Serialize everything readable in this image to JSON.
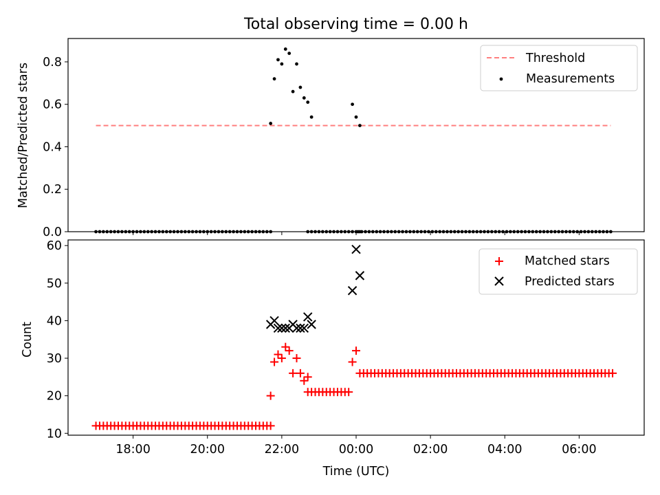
{
  "chart_data": [
    {
      "type": "scatter",
      "title": "Total observing time = 0.00 h",
      "xlabel": "",
      "ylabel": "Matched/Predicted stars",
      "ylim": [
        0,
        0.91
      ],
      "yticks": [
        0.0,
        0.2,
        0.4,
        0.6,
        0.8
      ],
      "ytick_labels": [
        "0.0",
        "0.2",
        "0.4",
        "0.6",
        "0.8"
      ],
      "legend_position": "top-right",
      "threshold": {
        "name": "Threshold",
        "value": 0.5,
        "x_start": -7.0,
        "x_end": 6.85,
        "color": "#ff7f7f"
      },
      "measurements": {
        "name": "Measurements",
        "color": "#000000",
        "zero_segments": [
          [
            -7.0,
            -2.35
          ],
          [
            -1.3,
            0.05
          ],
          [
            0.05,
            6.85
          ]
        ],
        "points": [
          [
            -2.3,
            0.51
          ],
          [
            -2.2,
            0.72
          ],
          [
            -2.1,
            0.81
          ],
          [
            -2.0,
            0.79
          ],
          [
            -1.9,
            0.86
          ],
          [
            -1.8,
            0.84
          ],
          [
            -1.7,
            0.66
          ],
          [
            -1.6,
            0.79
          ],
          [
            -1.5,
            0.68
          ],
          [
            -1.4,
            0.63
          ],
          [
            -1.3,
            0.61
          ],
          [
            -1.2,
            0.54
          ],
          [
            -0.1,
            0.6
          ],
          [
            0.0,
            0.54
          ],
          [
            0.1,
            0.5
          ]
        ]
      }
    },
    {
      "type": "scatter",
      "title": "",
      "xlabel": "Time (UTC)",
      "ylabel": "Count",
      "ylim": [
        9.5,
        61.5
      ],
      "yticks": [
        10,
        20,
        30,
        40,
        50,
        60
      ],
      "ytick_labels": [
        "10",
        "20",
        "30",
        "40",
        "50",
        "60"
      ],
      "xlim": [
        -7.75,
        7.75
      ],
      "xticks": [
        -6,
        -4,
        -2,
        0,
        2,
        4,
        6
      ],
      "xtick_labels": [
        "18:00",
        "20:00",
        "22:00",
        "00:00",
        "02:00",
        "04:00",
        "06:00"
      ],
      "legend_position": "top-right",
      "matched": {
        "name": "Matched stars",
        "color": "#ff0000",
        "constant_segments": [
          {
            "from": -7.0,
            "to": -2.35,
            "value": 12
          },
          {
            "from": -1.3,
            "to": -0.25,
            "value": 21
          },
          {
            "from": 0.1,
            "to": 6.85,
            "value": 26
          }
        ],
        "points": [
          [
            -2.3,
            20
          ],
          [
            -2.2,
            29
          ],
          [
            -2.1,
            31
          ],
          [
            -2.0,
            30
          ],
          [
            -1.9,
            33
          ],
          [
            -1.8,
            32
          ],
          [
            -1.7,
            26
          ],
          [
            -1.6,
            30
          ],
          [
            -1.5,
            26
          ],
          [
            -1.4,
            24
          ],
          [
            -1.3,
            25
          ],
          [
            -0.1,
            29
          ],
          [
            0.0,
            32
          ]
        ]
      },
      "predicted": {
        "name": "Predicted stars",
        "color": "#000000",
        "points": [
          [
            -2.3,
            39
          ],
          [
            -2.2,
            40
          ],
          [
            -2.1,
            38
          ],
          [
            -2.0,
            38
          ],
          [
            -1.9,
            38
          ],
          [
            -1.8,
            38
          ],
          [
            -1.7,
            39
          ],
          [
            -1.6,
            38
          ],
          [
            -1.5,
            38
          ],
          [
            -1.4,
            38
          ],
          [
            -1.3,
            41
          ],
          [
            -1.2,
            39
          ],
          [
            -0.1,
            48
          ],
          [
            0.0,
            59
          ],
          [
            0.1,
            52
          ]
        ]
      }
    }
  ]
}
